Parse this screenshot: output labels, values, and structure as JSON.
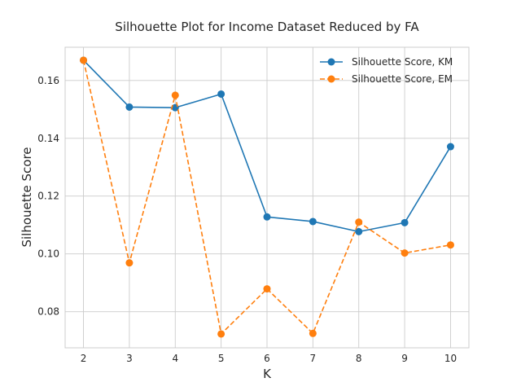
{
  "chart_data": {
    "type": "line",
    "title": "Silhouette Plot for Income Dataset Reduced by FA",
    "xlabel": "K",
    "ylabel": "Silhouette Score",
    "x": [
      2,
      3,
      4,
      5,
      6,
      7,
      8,
      9,
      10
    ],
    "x_tick_labels": [
      "2",
      "3",
      "4",
      "5",
      "6",
      "7",
      "8",
      "9",
      "10"
    ],
    "xlim": [
      1.6,
      10.4
    ],
    "ylim": [
      0.0675,
      0.1715
    ],
    "y_ticks": [
      0.08,
      0.1,
      0.12,
      0.14,
      0.16
    ],
    "y_tick_labels": [
      "0.08",
      "0.10",
      "0.12",
      "0.14",
      "0.16"
    ],
    "grid": true,
    "legend_position": "top-right",
    "series": [
      {
        "name": "Silhouette Score, KM",
        "color": "#1f77b4",
        "line_style": "solid",
        "marker": "circle",
        "values": [
          0.167,
          0.1508,
          0.1506,
          0.1553,
          0.1128,
          0.1112,
          0.1077,
          0.1108,
          0.1371
        ]
      },
      {
        "name": "Silhouette Score, EM",
        "color": "#ff7f0e",
        "line_style": "dashed",
        "marker": "circle",
        "values": [
          0.167,
          0.0969,
          0.1549,
          0.0723,
          0.0879,
          0.0725,
          0.111,
          0.1003,
          0.1031
        ]
      }
    ]
  }
}
